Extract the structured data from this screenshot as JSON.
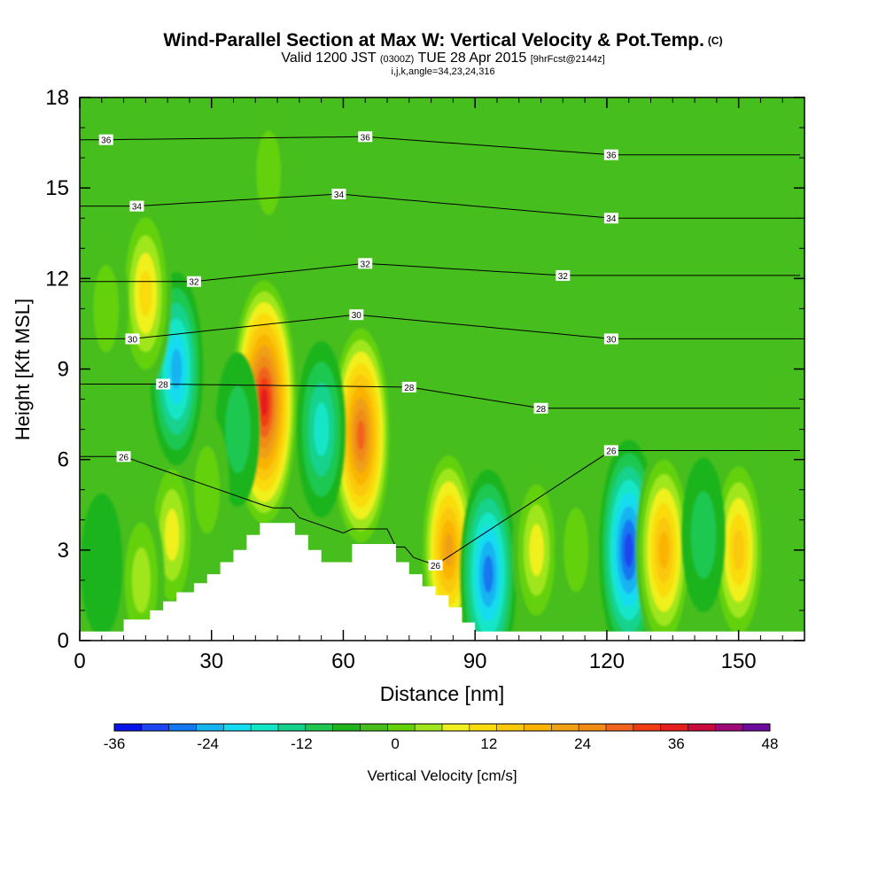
{
  "header": {
    "title": "Wind-Parallel Section at Max W: Vertical Velocity & Pot.Temp.",
    "copyright": "(C)",
    "valid_prefix": "Valid 1200 JST",
    "valid_utc": "(0300Z)",
    "valid_date": "TUE 28 Apr 2015",
    "forecast": "[9hrFcst@2144z]",
    "indices": "i,j,k,angle=34,23,24,316"
  },
  "chart_data": {
    "type": "heatmap",
    "xlabel": "Distance [nm]",
    "ylabel": "Height [Kft MSL]",
    "xlim": [
      0,
      165
    ],
    "ylim": [
      0,
      18
    ],
    "x_ticks": [
      0,
      30,
      60,
      90,
      120,
      150
    ],
    "y_ticks": [
      0,
      3,
      6,
      9,
      12,
      15,
      18
    ],
    "grid": false,
    "fill_variable": "Vertical Velocity [cm/s]",
    "colorbar": {
      "label": "Vertical Velocity [cm/s]",
      "min": -36,
      "max": 48,
      "step": 4,
      "tick_labels": [
        -36,
        -24,
        -12,
        0,
        12,
        24,
        36,
        48
      ],
      "colors": [
        "#0a14e8",
        "#1e46f0",
        "#1478f0",
        "#14b4f0",
        "#14dcf0",
        "#14e6c8",
        "#14d28c",
        "#1ec850",
        "#1eb41e",
        "#46be1e",
        "#64d20a",
        "#a0e61e",
        "#f0f01e",
        "#fadc0a",
        "#fac80a",
        "#fab400",
        "#f0a014",
        "#f08c14",
        "#f0641e",
        "#f03c14",
        "#e61e1e",
        "#c80a3c",
        "#a00a78",
        "#6e0a9e"
      ]
    },
    "background_value": 0,
    "features": [
      {
        "kind": "w_cell",
        "x": 42,
        "y": 7.9,
        "peak": 48
      },
      {
        "kind": "w_cell",
        "x": 64,
        "y": 6.8,
        "peak": 38
      },
      {
        "kind": "w_cell",
        "x": 55,
        "y": 7.0,
        "peak": -16
      },
      {
        "kind": "w_cell",
        "x": 36,
        "y": 7.0,
        "peak": -8
      },
      {
        "kind": "w_cell",
        "x": 29,
        "y": 5.0,
        "peak": 8
      },
      {
        "kind": "w_cell",
        "x": 21,
        "y": 3.5,
        "peak": 14
      },
      {
        "kind": "w_cell",
        "x": 22,
        "y": 9.0,
        "peak": -22
      },
      {
        "kind": "w_cell",
        "x": 15,
        "y": 11.5,
        "peak": 20
      },
      {
        "kind": "w_cell",
        "x": 6,
        "y": 11.0,
        "peak": 8
      },
      {
        "kind": "w_cell",
        "x": 43,
        "y": 15.5,
        "peak": 6
      },
      {
        "kind": "w_cell",
        "x": 84,
        "y": 3.0,
        "peak": 30
      },
      {
        "kind": "w_cell",
        "x": 93,
        "y": 2.2,
        "peak": -28
      },
      {
        "kind": "w_cell",
        "x": 104,
        "y": 3.0,
        "peak": 14
      },
      {
        "kind": "w_cell",
        "x": 113,
        "y": 3.0,
        "peak": 6
      },
      {
        "kind": "w_cell",
        "x": 125,
        "y": 3.0,
        "peak": -32
      },
      {
        "kind": "w_cell",
        "x": 133,
        "y": 3.0,
        "peak": 28
      },
      {
        "kind": "w_cell",
        "x": 150,
        "y": 3.0,
        "peak": 24
      },
      {
        "kind": "w_cell",
        "x": 142,
        "y": 3.5,
        "peak": -8
      },
      {
        "kind": "w_cell",
        "x": 14,
        "y": 2.0,
        "peak": 12
      },
      {
        "kind": "w_cell",
        "x": 5,
        "y": 2.5,
        "peak": -4
      },
      {
        "kind": "w_cell",
        "x": 160,
        "y": 6.5,
        "peak": 4
      }
    ],
    "terrain": [
      [
        0,
        0.3
      ],
      [
        10,
        0.3
      ],
      [
        10,
        0.7
      ],
      [
        16,
        0.7
      ],
      [
        16,
        1.0
      ],
      [
        19,
        1.0
      ],
      [
        19,
        1.3
      ],
      [
        22,
        1.3
      ],
      [
        22,
        1.6
      ],
      [
        26,
        1.6
      ],
      [
        26,
        1.9
      ],
      [
        29,
        1.9
      ],
      [
        29,
        2.2
      ],
      [
        32,
        2.2
      ],
      [
        32,
        2.6
      ],
      [
        35,
        2.6
      ],
      [
        35,
        3.0
      ],
      [
        38,
        3.0
      ],
      [
        38,
        3.5
      ],
      [
        41,
        3.5
      ],
      [
        41,
        3.9
      ],
      [
        49,
        3.9
      ],
      [
        49,
        3.5
      ],
      [
        52,
        3.5
      ],
      [
        52,
        3.0
      ],
      [
        55,
        3.0
      ],
      [
        55,
        2.6
      ],
      [
        62,
        2.6
      ],
      [
        62,
        3.2
      ],
      [
        72,
        3.2
      ],
      [
        72,
        2.6
      ],
      [
        75,
        2.6
      ],
      [
        75,
        2.2
      ],
      [
        78,
        2.2
      ],
      [
        78,
        1.8
      ],
      [
        81,
        1.8
      ],
      [
        81,
        1.5
      ],
      [
        84,
        1.5
      ],
      [
        84,
        1.1
      ],
      [
        87,
        1.1
      ],
      [
        87,
        0.6
      ],
      [
        90,
        0.6
      ],
      [
        90,
        0.3
      ],
      [
        165,
        0.3
      ]
    ],
    "theta_contours": [
      {
        "level": 26,
        "labels": [
          [
            10,
            6.1
          ],
          [
            81,
            2.5
          ],
          [
            121,
            6.3
          ]
        ]
      },
      {
        "level": 28,
        "labels": [
          [
            19,
            8.5
          ],
          [
            75,
            8.4
          ],
          [
            105,
            7.7
          ]
        ]
      },
      {
        "level": 30,
        "labels": [
          [
            12,
            10.0
          ],
          [
            63,
            10.8
          ],
          [
            121,
            10.0
          ]
        ]
      },
      {
        "level": 32,
        "labels": [
          [
            26,
            11.9
          ],
          [
            65,
            12.5
          ],
          [
            110,
            12.1
          ]
        ]
      },
      {
        "level": 34,
        "labels": [
          [
            13,
            14.4
          ],
          [
            59,
            14.8
          ],
          [
            121,
            14.0
          ]
        ]
      },
      {
        "level": 36,
        "labels": [
          [
            6,
            16.6
          ],
          [
            65,
            16.7
          ],
          [
            121,
            16.1
          ]
        ]
      }
    ]
  }
}
